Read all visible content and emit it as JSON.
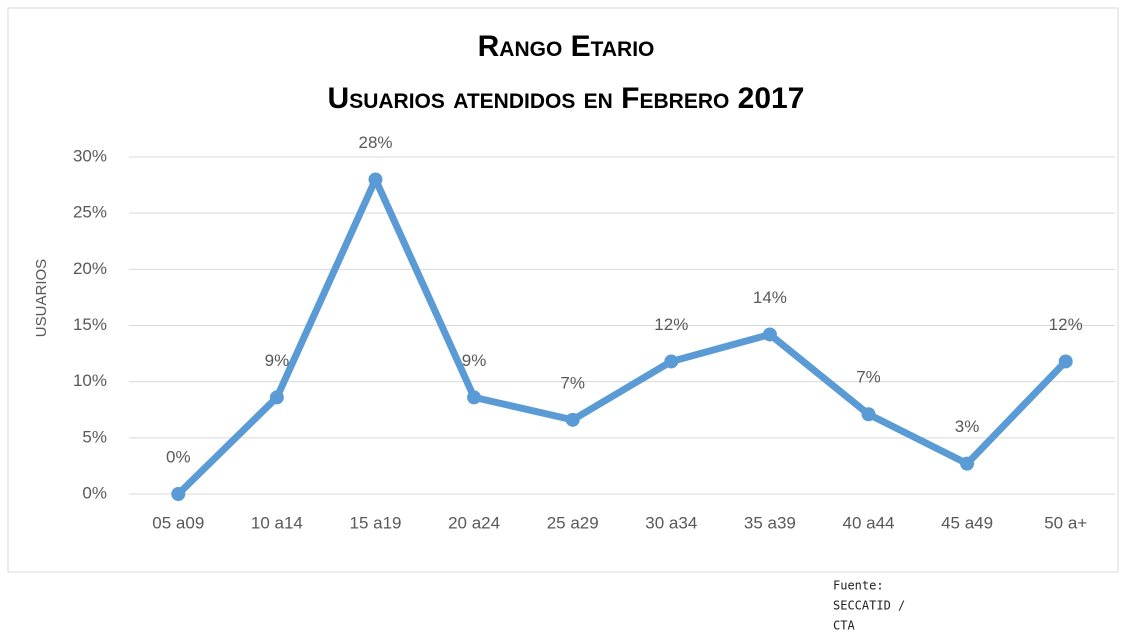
{
  "chart_data": {
    "type": "line",
    "title": "Rango Etario",
    "subtitle": "Usuarios atendidos en Febrero 2017",
    "y_label": "USUARIOS",
    "source": [
      "Fuente:",
      "SECCATID /",
      "CTA"
    ],
    "categories": [
      "05 a09",
      "10 a14",
      "15 a19",
      "20 a24",
      "25 a29",
      "30 a34",
      "35 a39",
      "40 a44",
      "45 a49",
      "50 a+"
    ],
    "series": [
      {
        "name": "Usuarios",
        "color": "#5b9bd5",
        "values": [
          0,
          8.6,
          28,
          8.6,
          6.6,
          11.8,
          14.2,
          7.1,
          2.7,
          11.8
        ],
        "value_labels": [
          "0%",
          "9%",
          "28%",
          "9%",
          "7%",
          "12%",
          "14%",
          "7%",
          "3%",
          "12%"
        ]
      }
    ],
    "ylim": [
      0,
      30
    ],
    "yticks": [
      {
        "value": 0,
        "label": "0%"
      },
      {
        "value": 5,
        "label": "5%"
      },
      {
        "value": 10,
        "label": "10%"
      },
      {
        "value": 15,
        "label": "15%"
      },
      {
        "value": 20,
        "label": "20%"
      },
      {
        "value": 25,
        "label": "25%"
      },
      {
        "value": 30,
        "label": "30%"
      }
    ],
    "grid": true
  }
}
